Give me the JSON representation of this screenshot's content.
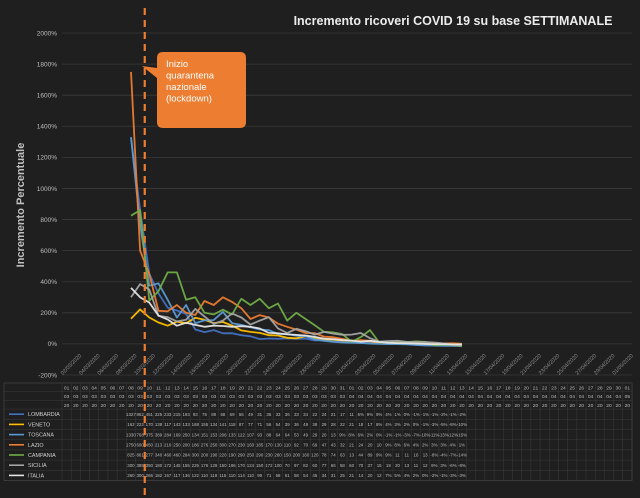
{
  "chart_data": {
    "type": "line",
    "title": "Incremento ricoveri COVID 19 su base SETTIMANALE",
    "ylabel": "Incremento Percentuale",
    "xlabel": "",
    "ylim": [
      -200,
      2000
    ],
    "yticks": [
      "-200%",
      "0%",
      "200%",
      "400%",
      "600%",
      "800%",
      "1000%",
      "1200%",
      "1400%",
      "1600%",
      "1800%",
      "2000%"
    ],
    "grid": true,
    "legend": "table-below",
    "x": [
      "01/03/2020",
      "02/03/2020",
      "03/03/2020",
      "04/03/2020",
      "05/03/2020",
      "06/03/2020",
      "07/03/2020",
      "08/03/2020",
      "09/03/2020",
      "10/03/2020",
      "11/03/2020",
      "12/03/2020",
      "13/03/2020",
      "14/03/2020",
      "15/03/2020",
      "16/03/2020",
      "17/03/2020",
      "18/03/2020",
      "19/03/2020",
      "20/03/2020",
      "21/03/2020",
      "22/03/2020",
      "23/03/2020",
      "24/03/2020",
      "25/03/2020",
      "26/03/2020",
      "27/03/2020",
      "28/03/2020",
      "29/03/2020",
      "30/03/2020",
      "31/03/2020",
      "01/04/2020",
      "02/04/2020",
      "03/04/2020",
      "04/04/2020",
      "05/04/2020",
      "06/04/2020",
      "07/04/2020",
      "08/04/2020",
      "09/04/2020",
      "10/04/2020",
      "11/04/2020",
      "12/04/2020",
      "13/04/2020",
      "14/04/2020",
      "15/04/2020",
      "16/04/2020",
      "17/04/2020",
      "18/04/2020",
      "19/04/2020",
      "20/04/2020",
      "21/04/2020",
      "22/04/2020",
      "23/04/2020",
      "24/04/2020",
      "25/04/2020",
      "26/04/2020",
      "27/04/2020",
      "28/04/2020",
      "29/04/2020",
      "30/04/2020",
      "01/05/2020"
    ],
    "rotated_date_labels": [
      "02/03/2020",
      "04/03/2020",
      "06/03/2020",
      "08/03/2020",
      "10/03/2020",
      "12/03/2020",
      "14/03/2020",
      "16/03/2020",
      "18/03/2020",
      "20/03/2020",
      "22/03/2020",
      "24/03/2020",
      "26/03/2020",
      "28/03/2020",
      "30/03/2020",
      "01/04/2020",
      "03/04/2020",
      "05/04/2020",
      "07/04/2020",
      "09/04/2020",
      "11/04/2020",
      "13/04/2020",
      "15/04/2020",
      "17/04/2020",
      "19/04/2020",
      "21/04/2020",
      "23/04/2020",
      "25/04/2020",
      "27/04/2020",
      "29/04/2020",
      "01/05/2020"
    ],
    "table_header": {
      "days": [
        "01",
        "02",
        "03",
        "04",
        "05",
        "06",
        "07",
        "08",
        "09",
        "10",
        "11",
        "12",
        "13",
        "14",
        "15",
        "16",
        "17",
        "18",
        "19",
        "20",
        "21",
        "22",
        "23",
        "24",
        "25",
        "26",
        "27",
        "28",
        "29",
        "30",
        "31",
        "01",
        "02",
        "03",
        "04",
        "05",
        "06",
        "07",
        "08",
        "09",
        "10",
        "11",
        "12",
        "13",
        "14",
        "15",
        "16",
        "17",
        "18",
        "19",
        "20",
        "21",
        "22",
        "23",
        "24",
        "25",
        "26",
        "27",
        "28",
        "29",
        "30",
        "01"
      ],
      "months": [
        "03",
        "03",
        "03",
        "03",
        "03",
        "03",
        "03",
        "03",
        "03",
        "03",
        "03",
        "03",
        "03",
        "03",
        "03",
        "03",
        "03",
        "03",
        "03",
        "03",
        "03",
        "03",
        "03",
        "03",
        "03",
        "03",
        "03",
        "03",
        "03",
        "03",
        "03",
        "04",
        "04",
        "04",
        "04",
        "04",
        "04",
        "04",
        "04",
        "04",
        "04",
        "04",
        "04",
        "04",
        "04",
        "04",
        "04",
        "04",
        "04",
        "04",
        "04",
        "04",
        "04",
        "04",
        "04",
        "04",
        "04",
        "04",
        "04",
        "04",
        "04",
        "05"
      ],
      "year": "20"
    },
    "lockdown_index": 9,
    "annotation": "Inizio quarantena nazionale (lockdown)",
    "series": [
      {
        "name": "LOMBARDIA",
        "color": "#4472c4",
        "values": [
          null,
          null,
          null,
          null,
          null,
          null,
          null,
          1327,
          862,
          451,
          325,
          233,
          215,
          193,
          93,
          76,
          89,
          68,
          69,
          56,
          49,
          31,
          35,
          33,
          36,
          33,
          34,
          22,
          24,
          21,
          17,
          11,
          6,
          9,
          9,
          4,
          1,
          0,
          -1,
          -1,
          -1,
          -2,
          -1,
          -2,
          null,
          null,
          null,
          null,
          null,
          null,
          null,
          null,
          null,
          null,
          null,
          null,
          null,
          null,
          null,
          null,
          null,
          null
        ],
        "labels": [
          null,
          null,
          null,
          null,
          null,
          null,
          null,
          "1327",
          "862",
          "451",
          "325",
          "233",
          "215",
          "193",
          "93",
          "76",
          "89",
          "68",
          "69",
          "56",
          "49",
          "31",
          "35",
          "33",
          "36",
          "33",
          "34",
          "22",
          "24",
          "21",
          "17",
          "11",
          "6%",
          "9%",
          "9%",
          "4%",
          "1%",
          "0%",
          "-1%",
          "-1%",
          "-1%",
          "-2%",
          "-1%",
          "-2%",
          null,
          null,
          null,
          null,
          null,
          null,
          null,
          null,
          null,
          null,
          null,
          null,
          null,
          null,
          null,
          null,
          null,
          null
        ]
      },
      {
        "name": "VENETO",
        "color": "#ffc000",
        "values": [
          null,
          null,
          null,
          null,
          null,
          null,
          null,
          162,
          222,
          170,
          138,
          117,
          143,
          133,
          168,
          155,
          134,
          141,
          118,
          87,
          77,
          71,
          56,
          54,
          39,
          36,
          49,
          38,
          29,
          28,
          22,
          21,
          18,
          17,
          8,
          4,
          3,
          2,
          0,
          -1,
          -3,
          -5,
          -8,
          -10,
          null,
          null,
          null,
          null,
          null,
          null,
          null,
          null,
          null,
          null,
          null,
          null,
          null,
          null,
          null,
          null,
          null,
          null
        ],
        "labels": [
          null,
          null,
          null,
          null,
          null,
          null,
          null,
          "162",
          "222",
          "170",
          "138",
          "117",
          "143",
          "133",
          "168",
          "155",
          "134",
          "141",
          "118",
          "87",
          "77",
          "71",
          "56",
          "54",
          "39",
          "36",
          "49",
          "38",
          "29",
          "28",
          "22",
          "21",
          "18",
          "17",
          "8%",
          "4%",
          "3%",
          "2%",
          "0%",
          "-1%",
          "-3%",
          "-5%",
          "-8%",
          "-10%",
          null,
          null,
          null,
          null,
          null,
          null,
          null,
          null,
          null,
          null,
          null,
          null,
          null,
          null,
          null,
          null,
          null,
          null
        ]
      },
      {
        "name": "TOSCANA",
        "color": "#5b9bd5",
        "values": [
          null,
          null,
          null,
          null,
          null,
          null,
          null,
          1330,
          768,
          375,
          389,
          284,
          169,
          250,
          134,
          151,
          153,
          206,
          133,
          122,
          107,
          93,
          88,
          64,
          64,
          53,
          49,
          29,
          20,
          13,
          9,
          8,
          6,
          2,
          0,
          -1,
          -1,
          -3,
          -7,
          -10,
          -11,
          -13,
          -12,
          -15,
          null,
          null,
          null,
          null,
          null,
          null,
          null,
          null,
          null,
          null,
          null,
          null,
          null,
          null,
          null,
          null,
          null,
          null
        ],
        "labels": [
          null,
          null,
          null,
          null,
          null,
          null,
          null,
          "1330",
          "768",
          "375",
          "389",
          "284",
          "169",
          "250",
          "134",
          "151",
          "153",
          "206",
          "133",
          "122",
          "107",
          "93",
          "88",
          "64",
          "64",
          "53",
          "49",
          "29",
          "20",
          "13",
          "9%",
          "8%",
          "6%",
          "2%",
          "0%",
          "-1%",
          "-1%",
          "-3%",
          "-7%",
          "-10%",
          "-11%",
          "-13%",
          "-12%",
          "-15%",
          null,
          null,
          null,
          null,
          null,
          null,
          null,
          null,
          null,
          null,
          null,
          null,
          null,
          null,
          null,
          null,
          null,
          null
        ]
      },
      {
        "name": "LAZIO",
        "color": "#ed7d31",
        "values": [
          null,
          null,
          null,
          null,
          null,
          null,
          null,
          1750,
          600,
          450,
          213,
          210,
          250,
          200,
          186,
          276,
          250,
          300,
          270,
          230,
          160,
          185,
          170,
          130,
          110,
          92,
          70,
          69,
          47,
          43,
          32,
          21,
          24,
          20,
          10,
          9,
          8,
          6,
          4,
          2,
          3,
          3,
          4,
          1,
          null,
          null,
          null,
          null,
          null,
          null,
          null,
          null,
          null,
          null,
          null,
          null,
          null,
          null,
          null,
          null,
          null,
          null
        ],
        "labels": [
          null,
          null,
          null,
          null,
          null,
          null,
          null,
          "1750",
          "600",
          "450",
          "213",
          "210",
          "250",
          "200",
          "186",
          "276",
          "250",
          "300",
          "270",
          "230",
          "160",
          "185",
          "170",
          "130",
          "110",
          "92",
          "70",
          "69",
          "47",
          "43",
          "32",
          "21",
          "24",
          "20",
          "10",
          "9%",
          "8%",
          "6%",
          "4%",
          "2%",
          "3%",
          "3%",
          "4%",
          "1%",
          null,
          null,
          null,
          null,
          null,
          null,
          null,
          null,
          null,
          null,
          null,
          null,
          null,
          null,
          null,
          null,
          null,
          null
        ]
      },
      {
        "name": "CAMPANIA",
        "color": "#70ad47",
        "values": [
          null,
          null,
          null,
          null,
          null,
          null,
          null,
          825,
          861,
          277,
          340,
          460,
          460,
          284,
          300,
          200,
          190,
          220,
          190,
          290,
          250,
          290,
          230,
          260,
          150,
          200,
          160,
          120,
          78,
          74,
          63,
          13,
          44,
          89,
          9,
          9,
          11,
          11,
          16,
          13,
          -8,
          -4,
          -7,
          -14,
          null,
          null,
          null,
          null,
          null,
          null,
          null,
          null,
          null,
          null,
          null,
          null,
          null,
          null,
          null,
          null,
          null,
          null
        ],
        "labels": [
          null,
          null,
          null,
          null,
          null,
          null,
          null,
          "825",
          "861",
          "277",
          "340",
          "460",
          "460",
          "284",
          "300",
          "200",
          "190",
          "220",
          "190",
          "290",
          "250",
          "290",
          "230",
          "260",
          "150",
          "200",
          "160",
          "120",
          "78",
          "74",
          "63",
          "13",
          "44",
          "89",
          "9%",
          "9%",
          "11",
          "11",
          "16",
          "13",
          "-8%",
          "-4%",
          "-7%",
          "-14%",
          null,
          null,
          null,
          null,
          null,
          null,
          null,
          null,
          null,
          null,
          null,
          null,
          null,
          null,
          null,
          null,
          null,
          null
        ]
      },
      {
        "name": "SICILIA",
        "color": "#a5a5a5",
        "values": [
          null,
          null,
          null,
          null,
          null,
          null,
          null,
          300,
          385,
          350,
          180,
          172,
          145,
          155,
          225,
          176,
          129,
          150,
          196,
          170,
          124,
          150,
          172,
          100,
          70,
          97,
          82,
          60,
          77,
          66,
          58,
          60,
          70,
          37,
          15,
          19,
          20,
          13,
          11,
          12,
          9,
          3,
          -6,
          -8,
          null,
          null,
          null,
          null,
          null,
          null,
          null,
          null,
          null,
          null,
          null,
          null,
          null,
          null,
          null,
          null,
          null,
          null
        ],
        "labels": [
          null,
          null,
          null,
          null,
          null,
          null,
          null,
          "300",
          "385",
          "350",
          "180",
          "172",
          "145",
          "155",
          "225",
          "176",
          "129",
          "150",
          "196",
          "170",
          "124",
          "150",
          "172",
          "100",
          "70",
          "97",
          "82",
          "60",
          "77",
          "66",
          "58",
          "60",
          "70",
          "37",
          "15",
          "19",
          "20",
          "13",
          "11",
          "12",
          "9%",
          "3%",
          "-6%",
          "-8%",
          null,
          null,
          null,
          null,
          null,
          null,
          null,
          null,
          null,
          null,
          null,
          null,
          null,
          null,
          null,
          null,
          null,
          null
        ]
      },
      {
        "name": "ITALIA",
        "color": "#e7e6e6",
        "values": [
          null,
          null,
          null,
          null,
          null,
          null,
          null,
          360,
          300,
          266,
          182,
          157,
          117,
          136,
          122,
          110,
          118,
          115,
          110,
          114,
          110,
          99,
          71,
          68,
          61,
          58,
          54,
          45,
          34,
          31,
          25,
          21,
          14,
          20,
          12,
          7,
          5,
          4,
          2,
          0,
          -2,
          -1,
          -3,
          -3,
          null,
          null,
          null,
          null,
          null,
          null,
          null,
          null,
          null,
          null,
          null,
          null,
          null,
          null,
          null,
          null,
          null,
          null
        ],
        "labels": [
          null,
          null,
          null,
          null,
          null,
          null,
          null,
          "360",
          "300",
          "266",
          "182",
          "157",
          "117",
          "136",
          "122",
          "110",
          "118",
          "115",
          "110",
          "114",
          "110",
          "99",
          "71",
          "68",
          "61",
          "58",
          "54",
          "45",
          "34",
          "31",
          "25",
          "21",
          "14",
          "20",
          "12",
          "7%",
          "5%",
          "4%",
          "2%",
          "0%",
          "-2%",
          "-1%",
          "-3%",
          "-3%",
          null,
          null,
          null,
          null,
          null,
          null,
          null,
          null,
          null,
          null,
          null,
          null,
          null,
          null,
          null,
          null,
          null,
          null
        ]
      }
    ]
  }
}
